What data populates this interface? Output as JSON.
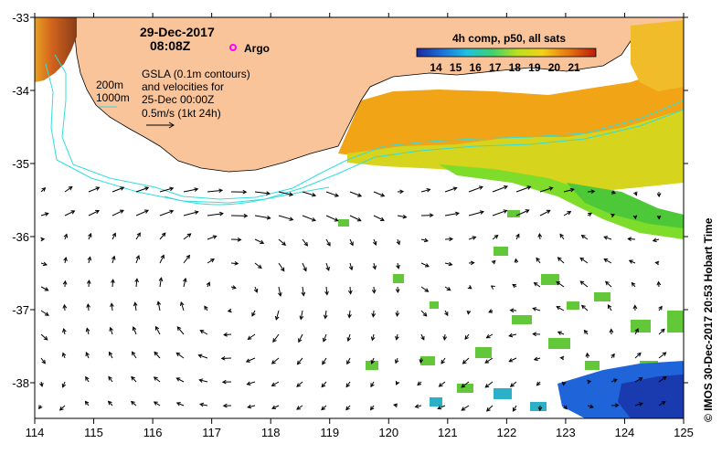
{
  "map": {
    "date": "29-Dec-2017",
    "time": "08:08Z",
    "argo_label": "Argo",
    "info_lines": [
      "GSLA (0.1m contours)",
      "and velocities for",
      "25-Dec 00:00Z",
      "0.5m/s (1kt 24h)"
    ],
    "depth_labels": [
      "200m",
      "1000m"
    ],
    "colorbar_title": "4h comp, p50, all sats",
    "colorbar_ticks": [
      "14",
      "15",
      "16",
      "17",
      "18",
      "19",
      "20",
      "21"
    ],
    "credit": "© IMOS 30-Dec-2017 20:53 Hobart Time",
    "lon_ticks": [
      "114",
      "115",
      "116",
      "117",
      "118",
      "119",
      "120",
      "121",
      "122",
      "123",
      "124",
      "125"
    ],
    "lat_ticks": [
      "-33",
      "-34",
      "-35",
      "-36",
      "-37",
      "-38"
    ],
    "colors": {
      "land": "#f9c49a",
      "contour": "#33dddd",
      "argo": "#ff00ff"
    }
  }
}
